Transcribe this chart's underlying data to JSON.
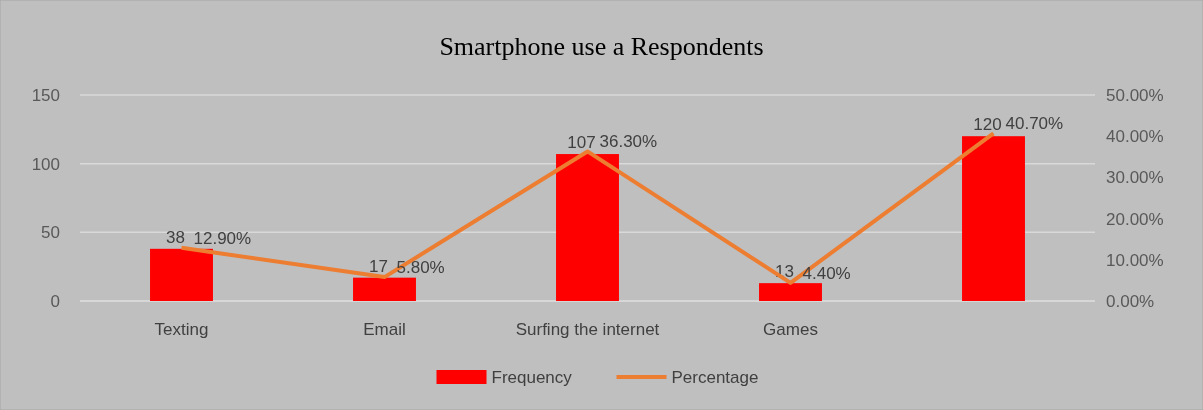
{
  "chart_data": {
    "type": "bar",
    "title": "Smartphone  use a Respondents",
    "categories": [
      "Texting",
      "Email",
      "Surfing the internet",
      "Games",
      null
    ],
    "series": [
      {
        "name": "Frequency",
        "color": "#ff0000",
        "values": [
          38,
          17,
          107,
          13,
          120
        ],
        "value_labels": [
          "38",
          "17",
          "107",
          "13",
          "120"
        ]
      },
      {
        "name": "Percentage",
        "type": "line",
        "axis": "y2",
        "color": "#ed7d31",
        "values": [
          12.9,
          5.8,
          36.3,
          4.4,
          40.7
        ],
        "value_labels": [
          "12.90%",
          "5.80%",
          "36.30%",
          "4.40%",
          "40.70%"
        ],
        "marker": "none"
      }
    ],
    "ylim": [
      0,
      150
    ],
    "yticks": [
      0,
      50,
      100,
      150
    ],
    "y2lim": [
      0,
      50
    ],
    "y2ticks": [
      {
        "value": 0,
        "label": "0.00%"
      },
      {
        "value": 10,
        "label": "10.00%"
      },
      {
        "value": 20,
        "label": "20.00%"
      },
      {
        "value": 30,
        "label": "30.00%"
      },
      {
        "value": 40,
        "label": "40.00%"
      },
      {
        "value": 50,
        "label": "50.00%"
      }
    ],
    "grid": "y",
    "legend": "bottom"
  }
}
